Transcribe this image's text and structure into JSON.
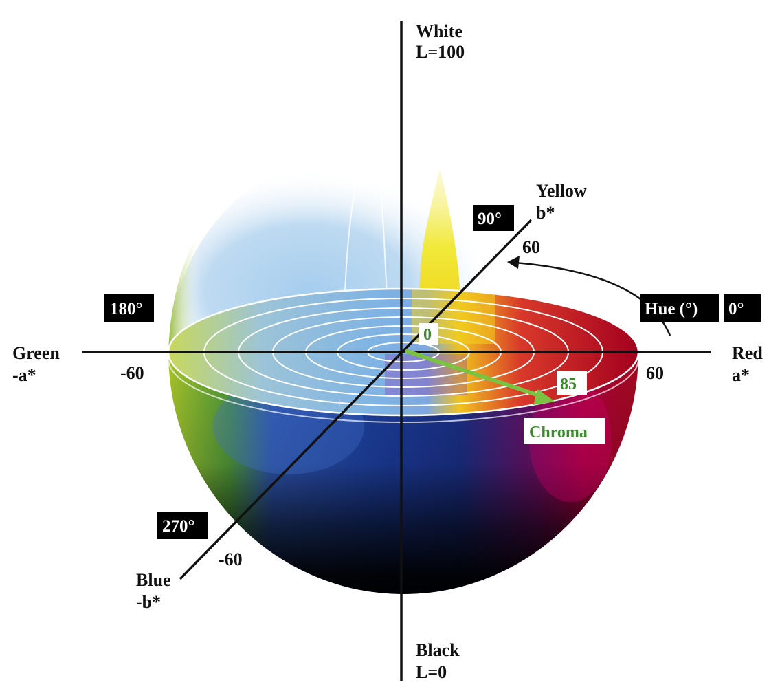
{
  "labels": {
    "white": "White",
    "white_l": "L=100",
    "black": "Black",
    "black_l": "L=0",
    "yellow": "Yellow",
    "yellow_axis": "b*",
    "blue": "Blue",
    "blue_axis": "-b*",
    "green": "Green",
    "green_axis": "-a*",
    "red": "Red",
    "red_axis": "a*",
    "tick_b_pos": "60",
    "tick_b_neg": "-60",
    "tick_a_pos": "60",
    "tick_a_neg": "-60",
    "origin": "0",
    "chroma_value": "85",
    "chroma": "Chroma"
  },
  "hue_boxes": {
    "h0": "0°",
    "h90": "90°",
    "h180": "180°",
    "h270": "270°",
    "hue": "Hue (°)"
  },
  "colors": {
    "axis": "#111111",
    "chroma_arrow": "#7cc242",
    "chroma_text": "#3c8a2e",
    "box_fill": "#000000",
    "red": "#b3001b",
    "yellow": "#f2e51a",
    "green": "#8fbf2a",
    "blue": "#1f3f9a",
    "black": "#050505",
    "white": "#ffffff"
  }
}
